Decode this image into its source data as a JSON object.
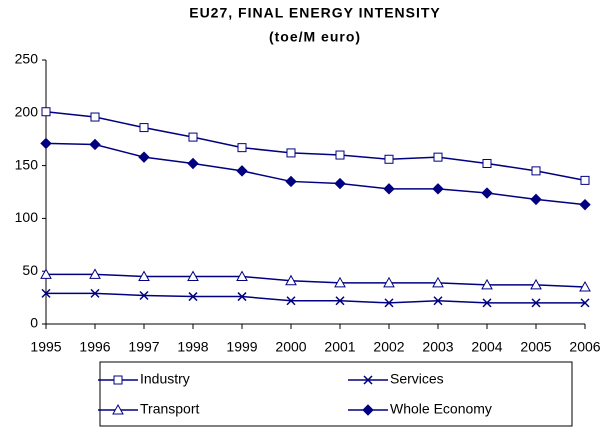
{
  "chart_data": {
    "type": "line",
    "title": "EU27, FINAL ENERGY INTENSITY",
    "subtitle": "(toe/M euro)",
    "x": [
      1995,
      1996,
      1997,
      1998,
      1999,
      2000,
      2001,
      2002,
      2003,
      2004,
      2005,
      2006
    ],
    "xlim": [
      1995,
      2006
    ],
    "xticks": [
      1995,
      1996,
      1997,
      1998,
      1999,
      2000,
      2001,
      2002,
      2003,
      2004,
      2005,
      2006
    ],
    "ylim": [
      0,
      250
    ],
    "yticks": [
      0,
      50,
      100,
      150,
      200,
      250
    ],
    "grid": false,
    "series": [
      {
        "name": "Industry",
        "color": "#000080",
        "marker": "square",
        "values": [
          201,
          196,
          186,
          177,
          167,
          162,
          160,
          156,
          158,
          152,
          145,
          136
        ]
      },
      {
        "name": "Services",
        "color": "#000080",
        "marker": "x",
        "values": [
          29,
          29,
          27,
          26,
          26,
          22,
          22,
          20,
          22,
          20,
          20,
          20
        ]
      },
      {
        "name": "Transport",
        "color": "#000080",
        "marker": "triangle",
        "values": [
          47,
          47,
          45,
          45,
          45,
          41,
          39,
          39,
          39,
          37,
          37,
          35
        ]
      },
      {
        "name": "Whole Economy",
        "color": "#000080",
        "marker": "diamond",
        "values": [
          171,
          170,
          158,
          152,
          145,
          135,
          133,
          128,
          128,
          124,
          118,
          113
        ]
      }
    ]
  }
}
